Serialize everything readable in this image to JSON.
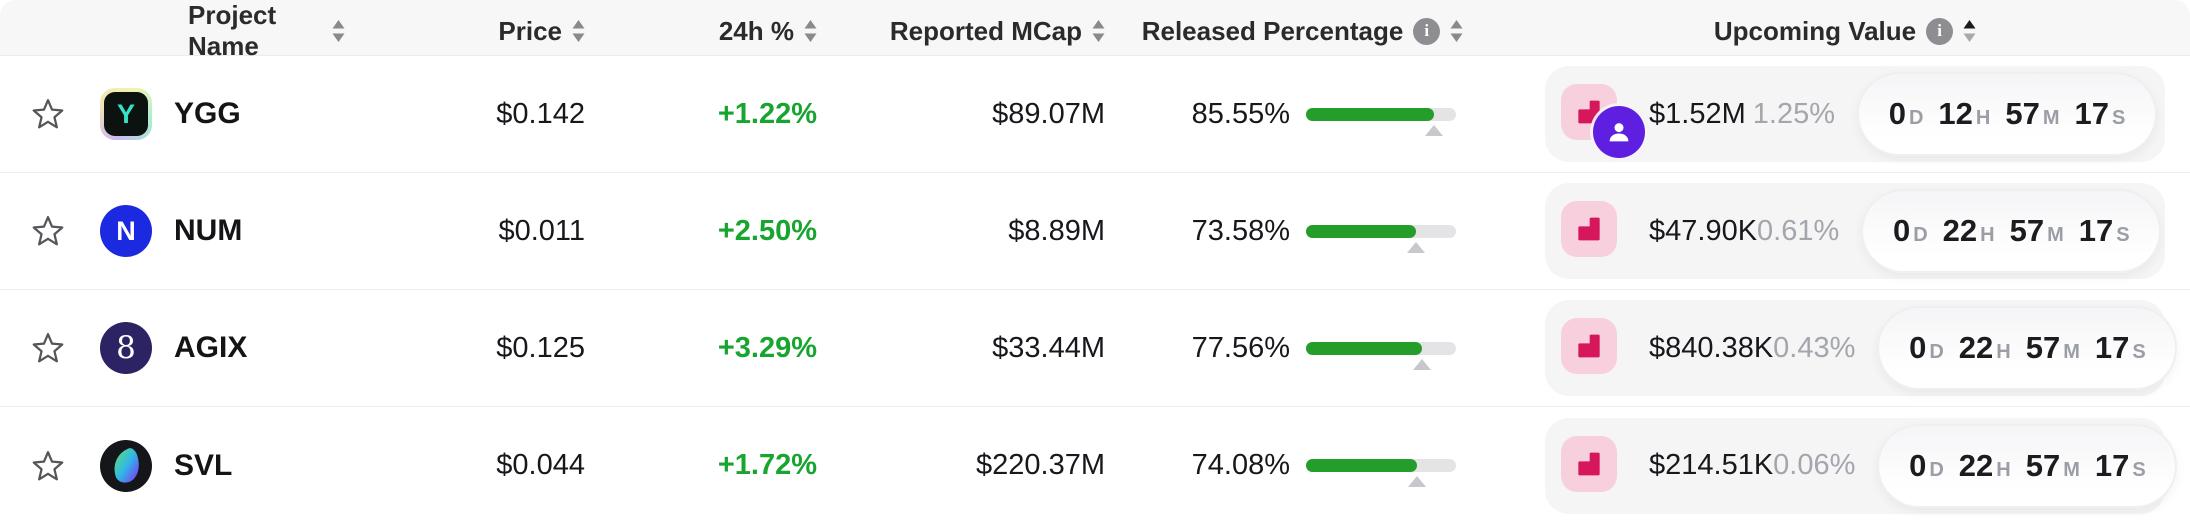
{
  "header": {
    "columns": {
      "name": {
        "label": "Project Name"
      },
      "price": {
        "label": "Price"
      },
      "change": {
        "label": "24h %"
      },
      "mcap": {
        "label": "Reported MCap",
        "info": false
      },
      "released": {
        "label": "Released Percentage",
        "info": true
      },
      "upcoming": {
        "label": "Upcoming Value",
        "info": true,
        "sort_active": "asc"
      }
    },
    "info_glyph": "i"
  },
  "colors": {
    "positive_change": "#17a52f",
    "progress_fill": "#259d2b",
    "progress_track": "#e4e4e7",
    "unlock_icon_bg": "#f8cfdd",
    "unlock_icon_glyph": "#d6175c",
    "team_badge_bg": "#5f1fe0",
    "muted_text": "#a4a6ad",
    "header_bg": "#f7f7f8"
  },
  "countdown_units": [
    "D",
    "H",
    "M",
    "S"
  ],
  "rows": [
    {
      "name": "YGG",
      "logo": {
        "style": "ygg",
        "letter": "Y"
      },
      "price": "$0.142",
      "change": "+1.22%",
      "mcap": "$89.07M",
      "released_label": "85.55%",
      "released_pct": 85.55,
      "unlock_icon": "bar-chart",
      "team_badge": true,
      "upcoming_value": "$1.52M",
      "upcoming_pct": "1.25%",
      "countdown": [
        "0",
        "12",
        "57",
        "17"
      ]
    },
    {
      "name": "NUM",
      "logo": {
        "style": "num",
        "letter": "N"
      },
      "price": "$0.011",
      "change": "+2.50%",
      "mcap": "$8.89M",
      "released_label": "73.58%",
      "released_pct": 73.58,
      "unlock_icon": "bar-chart",
      "team_badge": false,
      "upcoming_value": "$47.90K",
      "upcoming_pct": "0.61%",
      "countdown": [
        "0",
        "22",
        "57",
        "17"
      ]
    },
    {
      "name": "AGIX",
      "logo": {
        "style": "agix",
        "letter": "8"
      },
      "price": "$0.125",
      "change": "+3.29%",
      "mcap": "$33.44M",
      "released_label": "77.56%",
      "released_pct": 77.56,
      "unlock_icon": "bar-chart",
      "team_badge": false,
      "upcoming_value": "$840.38K",
      "upcoming_pct": "0.43%",
      "countdown": [
        "0",
        "22",
        "57",
        "17"
      ]
    },
    {
      "name": "SVL",
      "logo": {
        "style": "svl",
        "letter": ""
      },
      "price": "$0.044",
      "change": "+1.72%",
      "mcap": "$220.37M",
      "released_label": "74.08%",
      "released_pct": 74.08,
      "unlock_icon": "bar-chart",
      "team_badge": false,
      "upcoming_value": "$214.51K",
      "upcoming_pct": "0.06%",
      "countdown": [
        "0",
        "22",
        "57",
        "17"
      ]
    }
  ]
}
